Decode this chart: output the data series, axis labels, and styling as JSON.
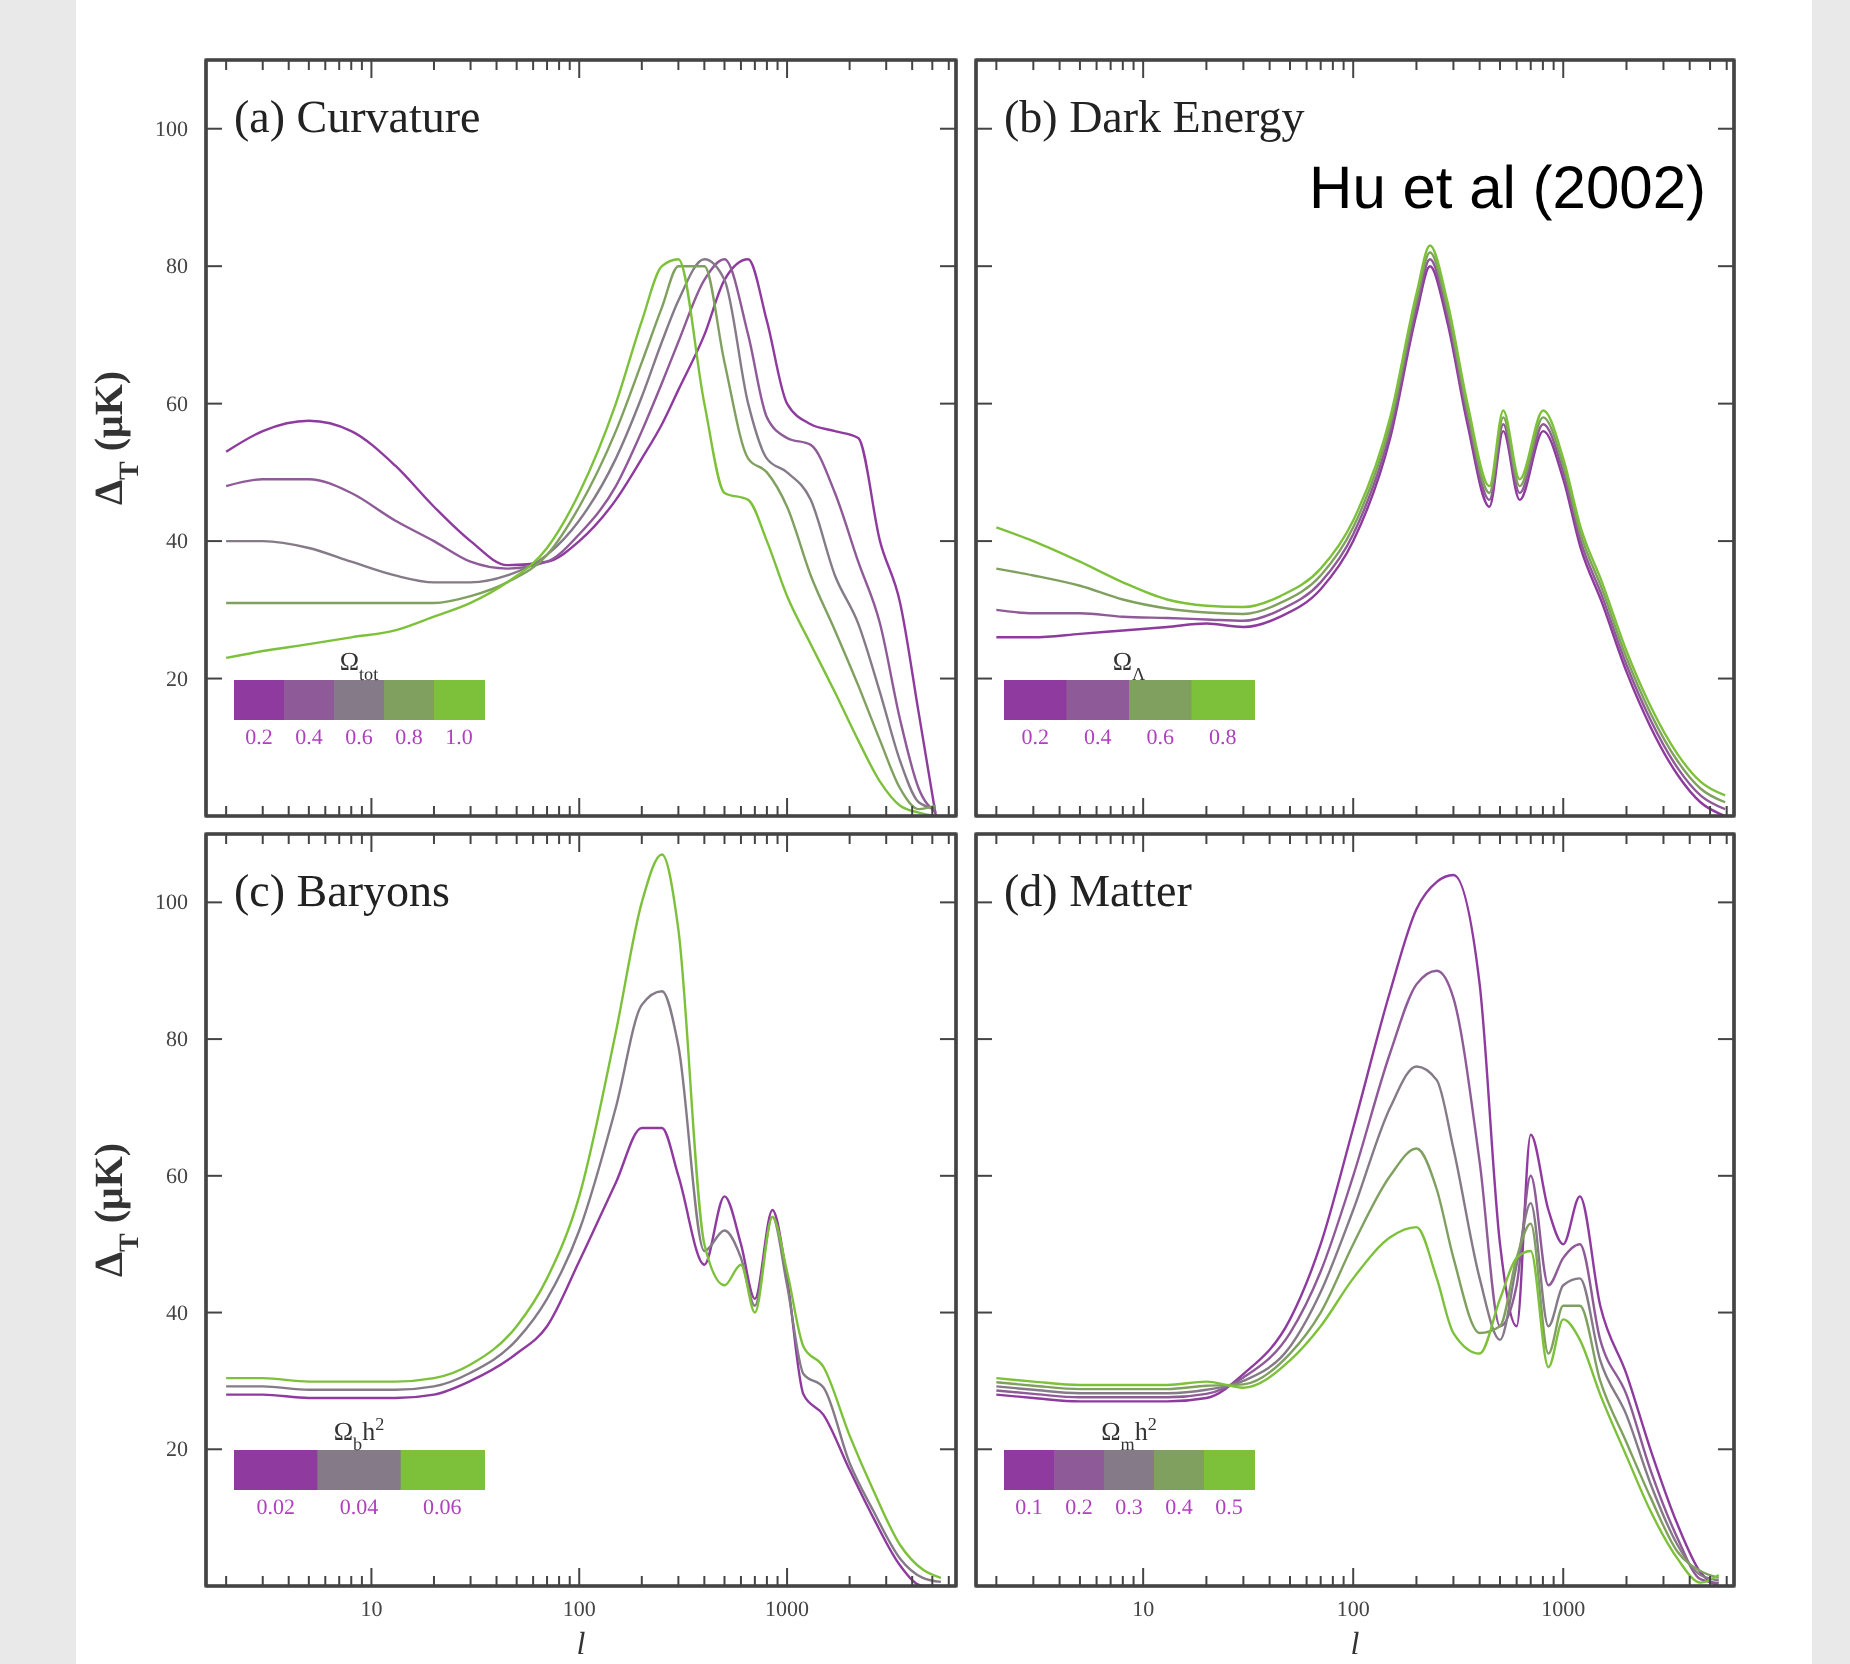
{
  "chart_data": [
    {
      "type": "line",
      "title": "(a) Curvature",
      "ylabel": "Δ$_{T}$ (μK)",
      "legend_title": "Ω$_{tot}$",
      "legend": "bottom left",
      "tick_labels": "y",
      "xlim": [
        1.6,
        6500
      ],
      "ylim": [
        0,
        110
      ],
      "log": "x",
      "xticks": [
        {
          "value": 2,
          "label": null
        },
        {
          "value": 3,
          "label": null
        },
        {
          "value": 4,
          "label": null
        },
        {
          "value": 5,
          "label": null
        },
        {
          "value": 6,
          "label": null
        },
        {
          "value": 7,
          "label": null
        },
        {
          "value": 8,
          "label": null
        },
        {
          "value": 9,
          "label": null
        },
        10,
        {
          "value": 20,
          "label": null
        },
        {
          "value": 30,
          "label": null
        },
        {
          "value": 40,
          "label": null
        },
        {
          "value": 50,
          "label": null
        },
        {
          "value": 60,
          "label": null
        },
        {
          "value": 70,
          "label": null
        },
        {
          "value": 80,
          "label": null
        },
        {
          "value": 90,
          "label": null
        },
        100,
        {
          "value": 200,
          "label": null
        },
        {
          "value": 300,
          "label": null
        },
        {
          "value": 400,
          "label": null
        },
        {
          "value": 500,
          "label": null
        },
        {
          "value": 600,
          "label": null
        },
        {
          "value": 700,
          "label": null
        },
        {
          "value": 800,
          "label": null
        },
        {
          "value": 900,
          "label": null
        },
        1000,
        {
          "value": 2000,
          "label": null
        },
        {
          "value": 3000,
          "label": null
        },
        {
          "value": 4000,
          "label": null
        },
        {
          "value": 5000,
          "label": null
        },
        {
          "value": 6000,
          "label": null
        }
      ],
      "yticks": [
        20,
        40,
        60,
        80,
        100
      ],
      "x": [
        2,
        3,
        5,
        8,
        13,
        20,
        30,
        45,
        70,
        100,
        150,
        200,
        250,
        300,
        400,
        500,
        650,
        800,
        1000,
        1300,
        1700,
        2200,
        2800,
        3500,
        4300,
        5200
      ],
      "series": [
        {
          "name": "0.2",
          "color": "#8e3a9e",
          "values": [
            53,
            56,
            57.5,
            56,
            51,
            45,
            40,
            36.5,
            37,
            40,
            46,
            52,
            57,
            62,
            70,
            78,
            81,
            72,
            60,
            57,
            56,
            55,
            40,
            31,
            15,
            0
          ]
        },
        {
          "name": "0.4",
          "color": "#8f5a98",
          "values": [
            48,
            49,
            49,
            47,
            43,
            40,
            37,
            36,
            37,
            41,
            48,
            56,
            63,
            69,
            78,
            81,
            70,
            58,
            55,
            54,
            47,
            37,
            28,
            14,
            4,
            0.5
          ]
        },
        {
          "name": "0.6",
          "color": "#857a88",
          "values": [
            40,
            40,
            39,
            37,
            35,
            34,
            34,
            35,
            38,
            43,
            52,
            61,
            69,
            75,
            81,
            78,
            60,
            52,
            50,
            46,
            35,
            28,
            18,
            8,
            2,
            1
          ]
        },
        {
          "name": "0.8",
          "color": "#80a060",
          "values": [
            31,
            31,
            31,
            31,
            31,
            31,
            32,
            34,
            38,
            45,
            56,
            66,
            74,
            80,
            80,
            66,
            52,
            50,
            45,
            35,
            27,
            19,
            11,
            4,
            1,
            1.5
          ]
        },
        {
          "name": "1.0",
          "color": "#7dc13a",
          "values": [
            23,
            24,
            25,
            26,
            27,
            29,
            31,
            34,
            39,
            47,
            60,
            72,
            80,
            81,
            60,
            47,
            46,
            40,
            32,
            25,
            18,
            11,
            5,
            1.5,
            0.5,
            0
          ]
        }
      ]
    },
    {
      "type": "line",
      "title": "(b) Dark Energy",
      "annotations": [
        "Hu et al (2002)"
      ],
      "legend_title": "Ω$_{Λ}$",
      "legend": "bottom left",
      "tick_labels": false,
      "xlim": [
        1.6,
        6500
      ],
      "ylim": [
        0,
        110
      ],
      "log": "x",
      "xticks": [
        {
          "value": 2,
          "label": null
        },
        {
          "value": 3,
          "label": null
        },
        {
          "value": 4,
          "label": null
        },
        {
          "value": 5,
          "label": null
        },
        {
          "value": 6,
          "label": null
        },
        {
          "value": 7,
          "label": null
        },
        {
          "value": 8,
          "label": null
        },
        {
          "value": 9,
          "label": null
        },
        10,
        {
          "value": 20,
          "label": null
        },
        {
          "value": 30,
          "label": null
        },
        {
          "value": 40,
          "label": null
        },
        {
          "value": 50,
          "label": null
        },
        {
          "value": 60,
          "label": null
        },
        {
          "value": 70,
          "label": null
        },
        {
          "value": 80,
          "label": null
        },
        {
          "value": 90,
          "label": null
        },
        100,
        {
          "value": 200,
          "label": null
        },
        {
          "value": 300,
          "label": null
        },
        {
          "value": 400,
          "label": null
        },
        {
          "value": 500,
          "label": null
        },
        {
          "value": 600,
          "label": null
        },
        {
          "value": 700,
          "label": null
        },
        {
          "value": 800,
          "label": null
        },
        {
          "value": 900,
          "label": null
        },
        1000,
        {
          "value": 2000,
          "label": null
        },
        {
          "value": 3000,
          "label": null
        },
        {
          "value": 4000,
          "label": null
        },
        {
          "value": 5000,
          "label": null
        },
        {
          "value": 6000,
          "label": null
        }
      ],
      "yticks": [
        20,
        40,
        60,
        80,
        100
      ],
      "x": [
        2,
        3,
        5,
        8,
        13,
        20,
        30,
        45,
        70,
        100,
        150,
        200,
        232,
        280,
        350,
        445,
        518,
        620,
        803,
        1000,
        1210,
        1530,
        2000,
        2600,
        3500,
        4500,
        5900
      ],
      "series": [
        {
          "name": "0.2",
          "color": "#8e3a9e",
          "values": [
            26,
            26,
            26.5,
            27,
            27.5,
            28,
            27.5,
            29,
            33,
            40,
            55,
            73,
            80,
            72,
            57,
            45,
            56,
            46,
            56,
            49,
            39,
            31,
            21,
            13,
            6,
            2,
            0
          ]
        },
        {
          "name": "0.4",
          "color": "#8f5a98",
          "values": [
            30,
            29.5,
            29.5,
            29,
            28.8,
            28.6,
            28.4,
            30,
            34,
            41,
            56,
            74,
            81,
            73,
            58,
            46,
            57,
            47,
            57,
            50,
            40,
            32,
            22,
            14,
            7,
            3,
            1
          ]
        },
        {
          "name": "0.6",
          "color": "#80a060",
          "values": [
            36,
            35,
            33.5,
            31.5,
            30.2,
            29.6,
            29.4,
            31,
            35,
            42,
            57,
            75,
            82,
            74,
            59,
            47,
            58,
            48,
            58,
            51,
            41,
            33,
            23,
            15,
            8,
            4,
            2
          ]
        },
        {
          "name": "0.8",
          "color": "#7dc13a",
          "values": [
            42,
            40,
            37,
            34,
            31.5,
            30.6,
            30.4,
            32,
            36,
            43,
            58,
            76,
            83,
            75,
            60,
            48,
            59,
            49,
            59,
            52,
            42,
            34,
            24,
            16,
            9,
            5,
            3
          ]
        }
      ]
    },
    {
      "type": "line",
      "title": "(c) Baryons",
      "xlabel": "l",
      "ylabel": "Δ$_{T}$ (μK)",
      "legend_title": "Ω$_{b}$h$^{2}$",
      "legend": "bottom left",
      "xlim": [
        1.6,
        6500
      ],
      "ylim": [
        0,
        110
      ],
      "log": "x",
      "xticks": [
        {
          "value": 2,
          "label": null
        },
        {
          "value": 3,
          "label": null
        },
        {
          "value": 4,
          "label": null
        },
        {
          "value": 5,
          "label": null
        },
        {
          "value": 6,
          "label": null
        },
        {
          "value": 7,
          "label": null
        },
        {
          "value": 8,
          "label": null
        },
        {
          "value": 9,
          "label": null
        },
        10,
        {
          "value": 20,
          "label": null
        },
        {
          "value": 30,
          "label": null
        },
        {
          "value": 40,
          "label": null
        },
        {
          "value": 50,
          "label": null
        },
        {
          "value": 60,
          "label": null
        },
        {
          "value": 70,
          "label": null
        },
        {
          "value": 80,
          "label": null
        },
        {
          "value": 90,
          "label": null
        },
        100,
        {
          "value": 200,
          "label": null
        },
        {
          "value": 300,
          "label": null
        },
        {
          "value": 400,
          "label": null
        },
        {
          "value": 500,
          "label": null
        },
        {
          "value": 600,
          "label": null
        },
        {
          "value": 700,
          "label": null
        },
        {
          "value": 800,
          "label": null
        },
        {
          "value": 900,
          "label": null
        },
        1000,
        {
          "value": 2000,
          "label": null
        },
        {
          "value": 3000,
          "label": null
        },
        {
          "value": 4000,
          "label": null
        },
        {
          "value": 5000,
          "label": null
        },
        {
          "value": 6000,
          "label": null
        }
      ],
      "yticks": [
        20,
        40,
        60,
        80,
        100
      ],
      "x": [
        2,
        3,
        5,
        8,
        13,
        20,
        30,
        50,
        70,
        100,
        150,
        200,
        250,
        300,
        400,
        500,
        600,
        700,
        850,
        1000,
        1200,
        1500,
        2000,
        2600,
        3500,
        4500,
        5500
      ],
      "series": [
        {
          "name": "0.02",
          "color": "#8e3a9e",
          "values": [
            28,
            28,
            27.5,
            27.5,
            27.5,
            28,
            30,
            34,
            38,
            47.5,
            59,
            67,
            67,
            60,
            47,
            57,
            50,
            42,
            55,
            45,
            28,
            25,
            17,
            10,
            3,
            0,
            0
          ]
        },
        {
          "name": "0.04",
          "color": "#857a88",
          "values": [
            29.2,
            29.2,
            28.7,
            28.7,
            28.7,
            29.2,
            31.2,
            36,
            42,
            52,
            70,
            85,
            87,
            79,
            49,
            52,
            48,
            41,
            54,
            44,
            31,
            29,
            18,
            11,
            4,
            1.2,
            0.6
          ]
        },
        {
          "name": "0.06",
          "color": "#7dc13a",
          "values": [
            30.4,
            30.4,
            29.9,
            29.9,
            29.9,
            30.4,
            32.4,
            38,
            45,
            57,
            81,
            100,
            107,
            96,
            50,
            44,
            47,
            40,
            54,
            46,
            35,
            32,
            22,
            14,
            6,
            2.4,
            1.2
          ]
        }
      ]
    },
    {
      "type": "line",
      "title": "(d) Matter",
      "xlabel": "l",
      "legend_title": "Ω$_{m}$h$^{2}$",
      "legend": "bottom left",
      "tick_labels": "x",
      "xlim": [
        1.6,
        6500
      ],
      "ylim": [
        0,
        110
      ],
      "log": "x",
      "xticks": [
        {
          "value": 2,
          "label": null
        },
        {
          "value": 3,
          "label": null
        },
        {
          "value": 4,
          "label": null
        },
        {
          "value": 5,
          "label": null
        },
        {
          "value": 6,
          "label": null
        },
        {
          "value": 7,
          "label": null
        },
        {
          "value": 8,
          "label": null
        },
        {
          "value": 9,
          "label": null
        },
        10,
        {
          "value": 20,
          "label": null
        },
        {
          "value": 30,
          "label": null
        },
        {
          "value": 40,
          "label": null
        },
        {
          "value": 50,
          "label": null
        },
        {
          "value": 60,
          "label": null
        },
        {
          "value": 70,
          "label": null
        },
        {
          "value": 80,
          "label": null
        },
        {
          "value": 90,
          "label": null
        },
        100,
        {
          "value": 200,
          "label": null
        },
        {
          "value": 300,
          "label": null
        },
        {
          "value": 400,
          "label": null
        },
        {
          "value": 500,
          "label": null
        },
        {
          "value": 600,
          "label": null
        },
        {
          "value": 700,
          "label": null
        },
        {
          "value": 800,
          "label": null
        },
        {
          "value": 900,
          "label": null
        },
        1000,
        {
          "value": 2000,
          "label": null
        },
        {
          "value": 3000,
          "label": null
        },
        {
          "value": 4000,
          "label": null
        },
        {
          "value": 5000,
          "label": null
        },
        {
          "value": 6000,
          "label": null
        }
      ],
      "yticks": [
        20,
        40,
        60,
        80,
        100
      ],
      "x": [
        2,
        3,
        5,
        8,
        13,
        20,
        30,
        50,
        70,
        100,
        150,
        200,
        250,
        300,
        400,
        500,
        600,
        700,
        850,
        1000,
        1200,
        1500,
        2000,
        2600,
        3500,
        4500,
        5500
      ],
      "series": [
        {
          "name": "0.1",
          "color": "#8e3a9e",
          "values": [
            28,
            27.5,
            27,
            27,
            27,
            27.5,
            31,
            39,
            50,
            67,
            87,
            99,
            103,
            104,
            88,
            50,
            38,
            66,
            55,
            50,
            57,
            41,
            31,
            20,
            9,
            2,
            0
          ]
        },
        {
          "name": "0.2",
          "color": "#8f5a98",
          "values": [
            28.6,
            28.1,
            27.6,
            27.6,
            27.6,
            28.1,
            30.5,
            37,
            46,
            60,
            78,
            88,
            90,
            86,
            62,
            38,
            44,
            60,
            44,
            48,
            50,
            36,
            28,
            17,
            7,
            1,
            0.4
          ]
        },
        {
          "name": "0.3",
          "color": "#857a88",
          "values": [
            29.2,
            28.7,
            28.2,
            28.2,
            28.2,
            28.7,
            30,
            35,
            43,
            55,
            70,
            76,
            74,
            64,
            45,
            36,
            47,
            56,
            38,
            44,
            45,
            33,
            25,
            15,
            6,
            1.6,
            0.8
          ]
        },
        {
          "name": "0.4",
          "color": "#80a060",
          "values": [
            29.8,
            29.3,
            28.8,
            28.8,
            28.8,
            29.3,
            29.5,
            34,
            40,
            50,
            60,
            64,
            58,
            48,
            37,
            38,
            48,
            53,
            34,
            41,
            41,
            30,
            21,
            13,
            5,
            2.2,
            1.2
          ]
        },
        {
          "name": "0.5",
          "color": "#7dc13a",
          "values": [
            30.4,
            29.9,
            29.4,
            29.4,
            29.4,
            29.9,
            29,
            33,
            38,
            45,
            51,
            52.5,
            45,
            37,
            34,
            42,
            48,
            49,
            32,
            39,
            36,
            28,
            19,
            11,
            4,
            0.5,
            1.6
          ]
        }
      ]
    }
  ]
}
